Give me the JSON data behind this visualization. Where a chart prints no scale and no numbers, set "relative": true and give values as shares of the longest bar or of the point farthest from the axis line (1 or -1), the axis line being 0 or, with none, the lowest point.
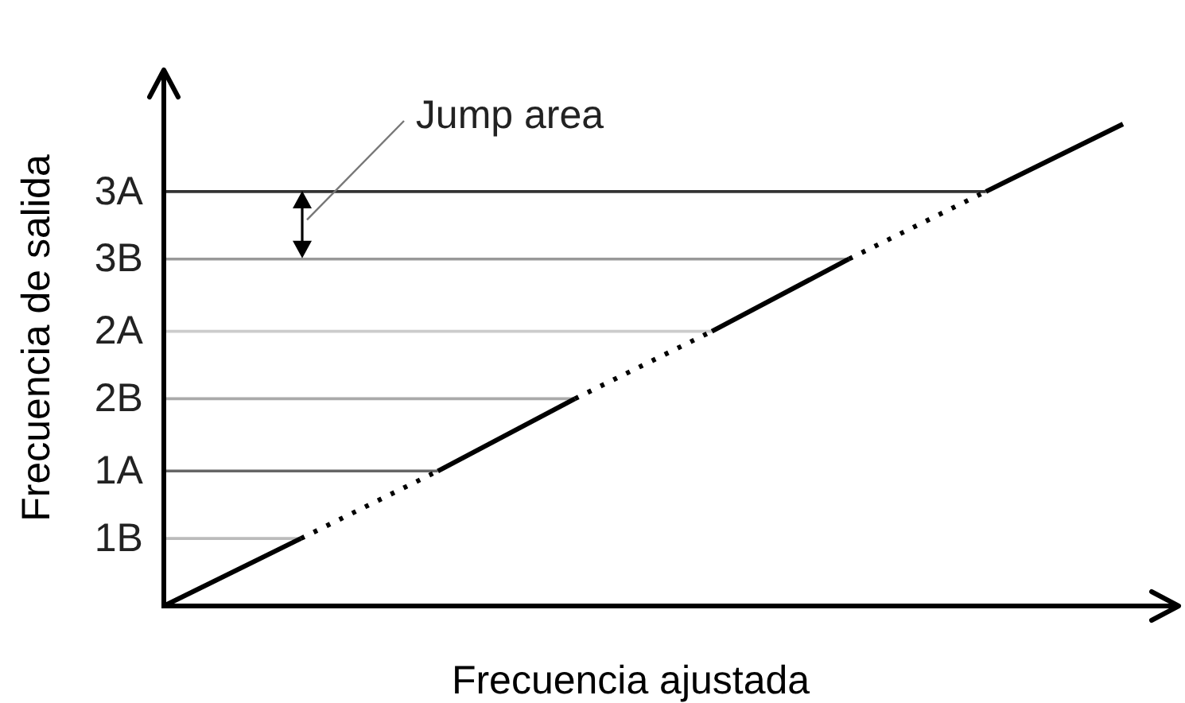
{
  "chart_data": {
    "type": "line",
    "relative": true,
    "xlabel": "Frecuencia ajustada",
    "ylabel": "Frecuencia de salida",
    "marker": "none",
    "categories": [
      null,
      null,
      null,
      null,
      null,
      null,
      null,
      null
    ],
    "series": [
      {
        "color": "#000000",
        "line_style": "solid",
        "values": [
          0,
          0.14,
          null,
          null,
          null,
          null,
          null,
          null
        ]
      },
      {
        "color": "#000000",
        "line_style": "dotted",
        "values": [
          null,
          0.14,
          0.28,
          null,
          null,
          null,
          null,
          null
        ]
      },
      {
        "color": "#000000",
        "line_style": "solid",
        "values": [
          null,
          null,
          0.28,
          0.43,
          null,
          null,
          null,
          null
        ]
      },
      {
        "color": "#000000",
        "line_style": "dotted",
        "values": [
          null,
          null,
          null,
          0.43,
          0.57,
          null,
          null,
          null
        ]
      },
      {
        "color": "#000000",
        "line_style": "solid",
        "values": [
          null,
          null,
          null,
          null,
          0.57,
          0.72,
          null,
          null
        ]
      },
      {
        "color": "#000000",
        "line_style": "dotted",
        "values": [
          null,
          null,
          null,
          null,
          null,
          0.72,
          0.86,
          null
        ]
      },
      {
        "color": "#000000",
        "line_style": "solid",
        "values": [
          null,
          null,
          null,
          null,
          null,
          null,
          0.86,
          1
        ]
      }
    ],
    "ref_lines": [
      {
        "axis": "y",
        "value": 0.86,
        "label": "3A",
        "color": "#333333"
      },
      {
        "axis": "y",
        "value": 0.72,
        "label": "3B",
        "color": "#999999"
      },
      {
        "axis": "y",
        "value": 0.57,
        "label": "2A",
        "color": "#cccccc"
      },
      {
        "axis": "y",
        "value": 0.43,
        "label": "2B",
        "color": "#aaaaaa"
      },
      {
        "axis": "y",
        "value": 0.28,
        "label": "1A",
        "color": "#666666"
      },
      {
        "axis": "y",
        "value": 0.14,
        "label": "1B",
        "color": "#bbbbbb"
      }
    ],
    "annotations": [
      "Jump area"
    ]
  }
}
